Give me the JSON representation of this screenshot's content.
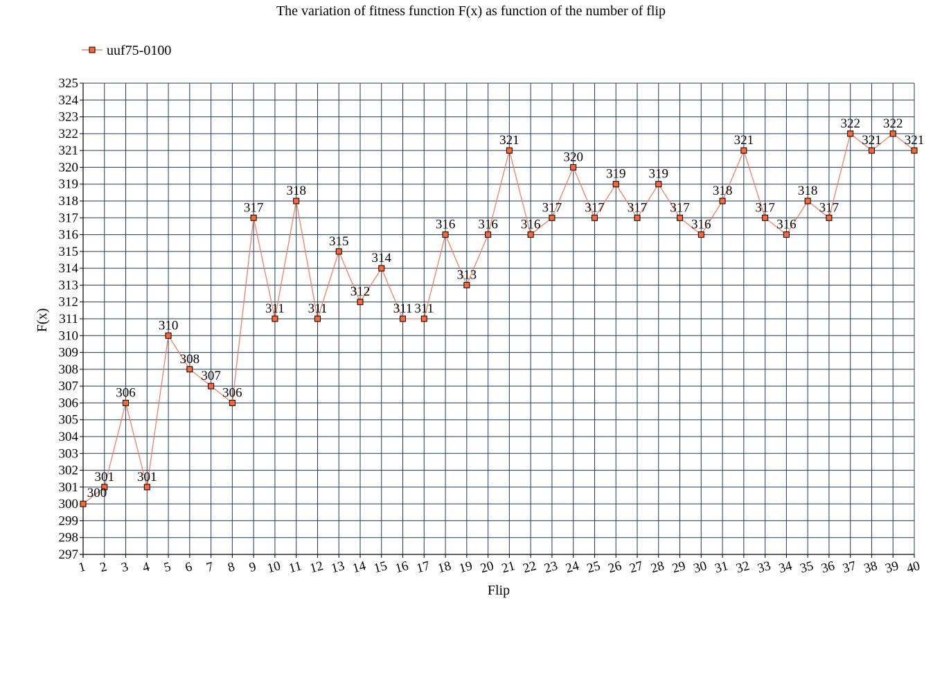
{
  "chart_data": {
    "type": "line",
    "title": "The variation of fitness function F(x) as function of the number of flip",
    "xlabel": "Flip",
    "ylabel": "F(x)",
    "ylim": [
      297,
      325
    ],
    "y_ticks": [
      297,
      298,
      299,
      300,
      301,
      302,
      303,
      304,
      305,
      306,
      307,
      308,
      309,
      310,
      311,
      312,
      313,
      314,
      315,
      316,
      317,
      318,
      319,
      320,
      321,
      322,
      323,
      324,
      325
    ],
    "x": [
      1,
      2,
      3,
      4,
      5,
      6,
      7,
      8,
      9,
      10,
      11,
      12,
      13,
      14,
      15,
      16,
      17,
      18,
      19,
      20,
      21,
      22,
      23,
      24,
      25,
      26,
      27,
      28,
      29,
      30,
      31,
      32,
      33,
      34,
      35,
      36,
      37,
      38,
      39,
      40
    ],
    "series": [
      {
        "name": "uuf75-0100",
        "values": [
          300,
          301,
          306,
          301,
          310,
          308,
          307,
          306,
          317,
          311,
          318,
          311,
          315,
          312,
          314,
          311,
          311,
          316,
          313,
          316,
          321,
          316,
          317,
          320,
          317,
          319,
          317,
          319,
          317,
          316,
          318,
          321,
          317,
          316,
          318,
          317,
          322,
          321,
          322,
          321
        ],
        "color": "#f08060",
        "marker_fill": "#ff6633",
        "marker_stroke": "#000000"
      }
    ],
    "legend_position": "top-left",
    "grid": true,
    "grid_color": "#1f3a5a",
    "data_labels": true
  }
}
